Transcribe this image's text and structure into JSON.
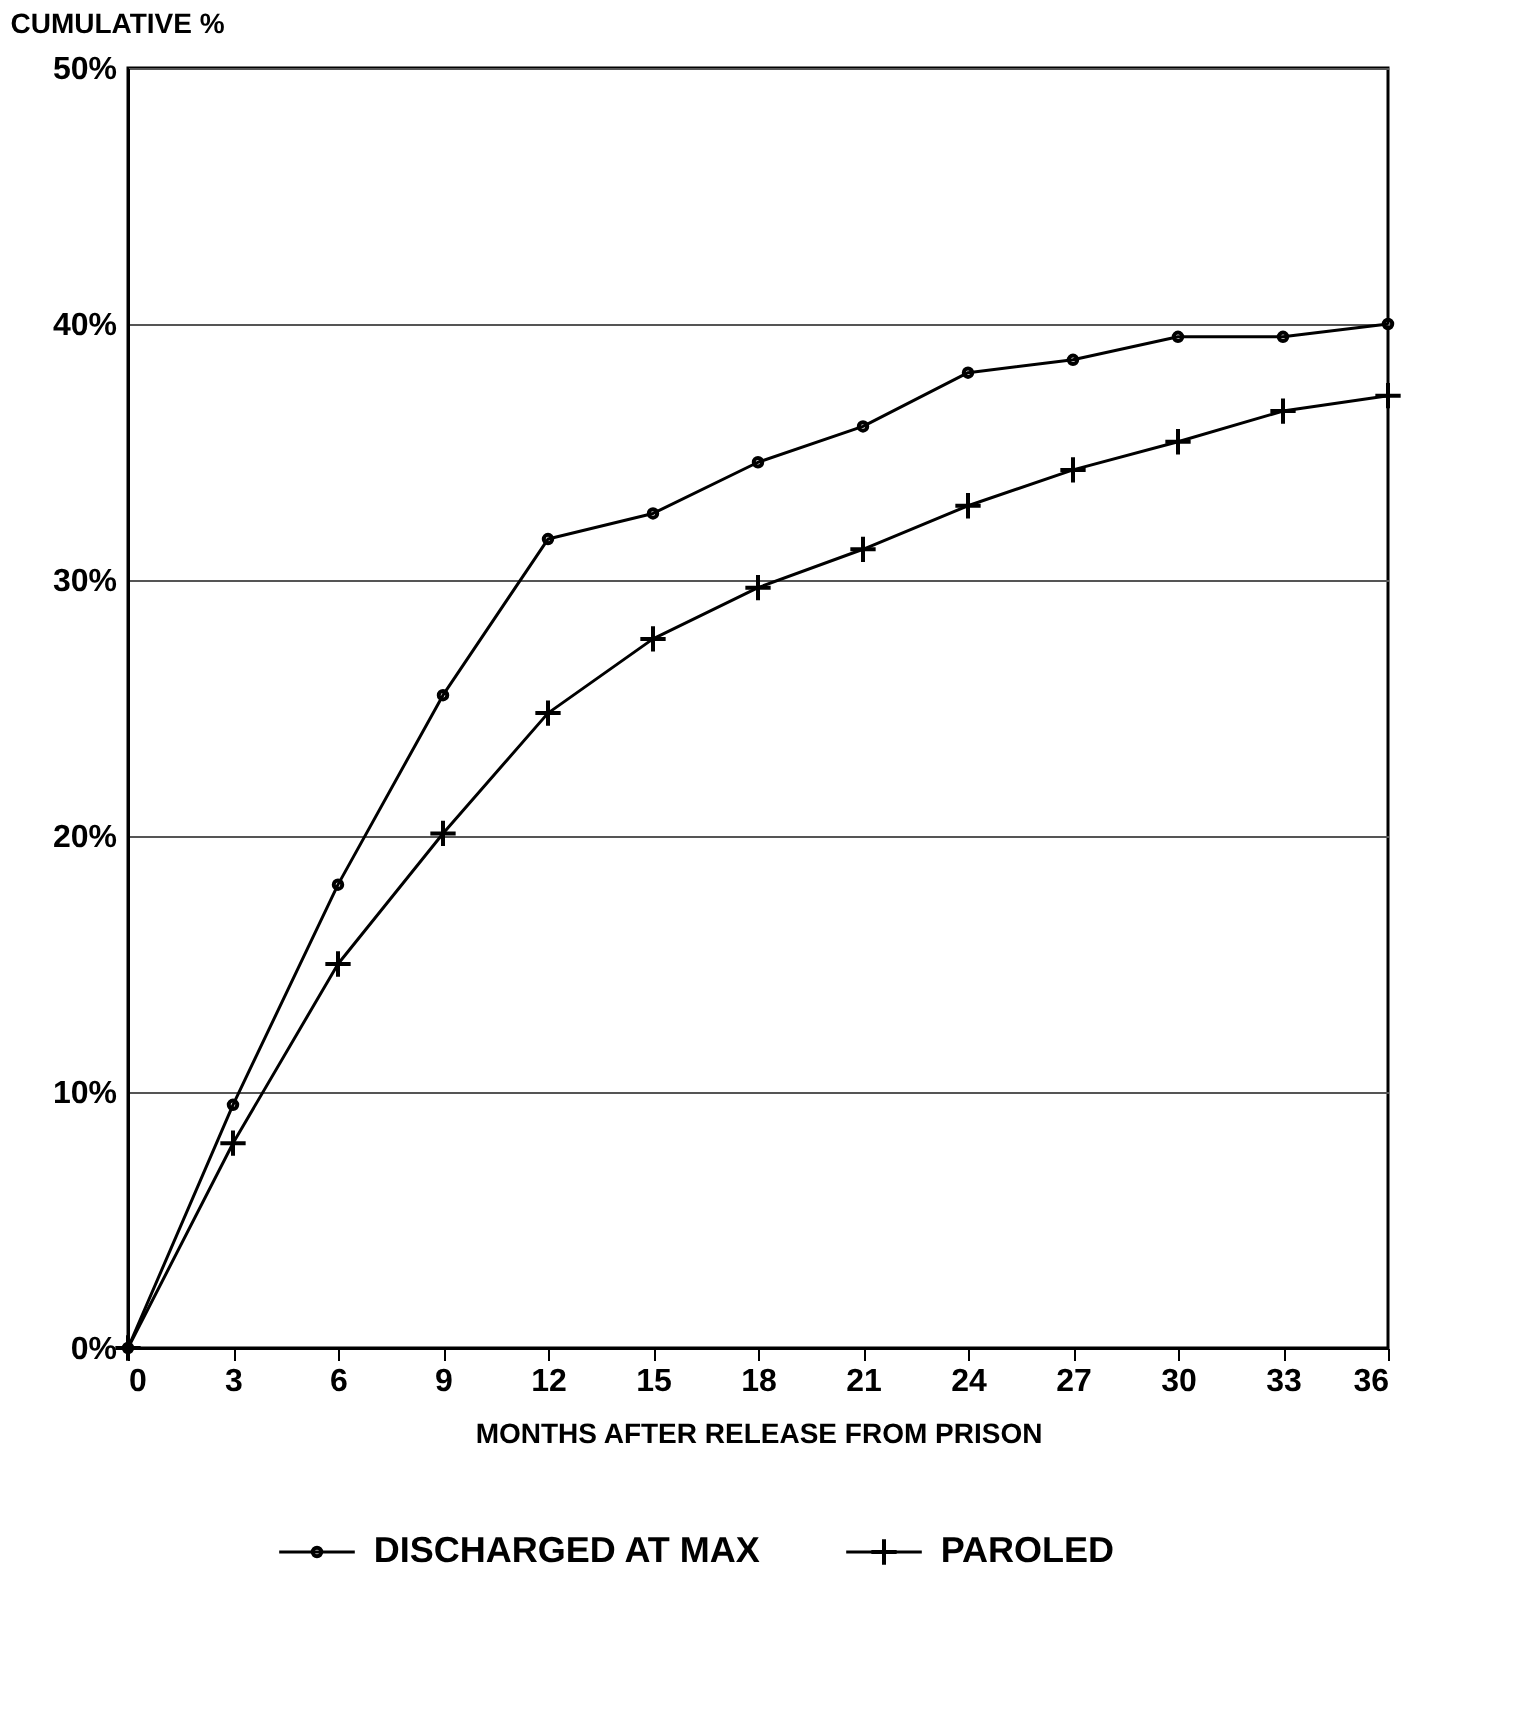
{
  "chart_data": {
    "type": "line",
    "ylabel": "CUMULATIVE %",
    "xlabel": "MONTHS AFTER RELEASE FROM PRISON",
    "x": [
      0,
      3,
      6,
      9,
      12,
      15,
      18,
      21,
      24,
      27,
      30,
      33,
      36
    ],
    "series": [
      {
        "name": "DISCHARGED AT MAX",
        "color": "#000000",
        "marker": "circle",
        "values": [
          0,
          9.5,
          18.1,
          25.5,
          31.6,
          32.6,
          34.6,
          36,
          38.1,
          38.6,
          39.5,
          39.5,
          40
        ]
      },
      {
        "name": "PAROLED",
        "color": "#000000",
        "marker": "cross",
        "values": [
          0,
          8,
          15,
          20.1,
          24.8,
          27.7,
          29.7,
          31.2,
          32.9,
          34.3,
          35.4,
          36.6,
          37.2
        ]
      }
    ],
    "xlim": [
      0,
      36
    ],
    "xticks": [
      0,
      3,
      6,
      9,
      12,
      15,
      18,
      21,
      24,
      27,
      30,
      33,
      36
    ],
    "ylim": [
      0,
      50
    ],
    "yticks": [
      {
        "value": 0,
        "label": "0%"
      },
      {
        "value": 10,
        "label": "10%"
      },
      {
        "value": 20,
        "label": "20%"
      },
      {
        "value": 30,
        "label": "30%"
      },
      {
        "value": 40,
        "label": "40%"
      },
      {
        "value": 50,
        "label": "50%"
      }
    ],
    "grid": "y",
    "legend": "bottom",
    "line_style": "solid"
  }
}
